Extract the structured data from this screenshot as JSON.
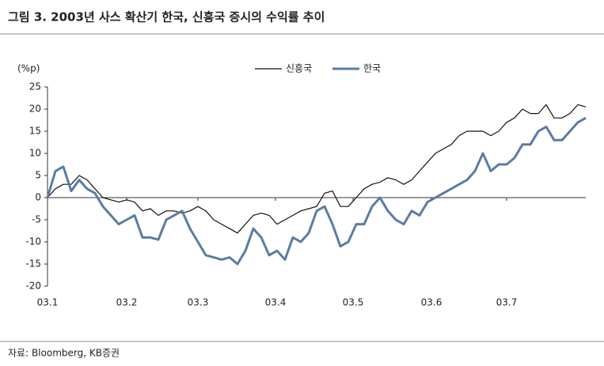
{
  "chart_data": {
    "type": "line",
    "title": "그림 3. 2003년 사스 확산기 한국, 신흥국 증시의 수익률 추이",
    "y_label": "(%p)",
    "source": "자료: Bloomberg, KB증권",
    "x": [
      0,
      1,
      2,
      3,
      4,
      5,
      6,
      7,
      8,
      9,
      10,
      11,
      12,
      13,
      14,
      15,
      16,
      17,
      18,
      19,
      20,
      21,
      22,
      23,
      24,
      25,
      26,
      27,
      28,
      29,
      30,
      31,
      32,
      33,
      34,
      35,
      36,
      37,
      38,
      39,
      40,
      41,
      42,
      43,
      44,
      45,
      46,
      47,
      48,
      49,
      50,
      51,
      52,
      53,
      54,
      55,
      56,
      57,
      58,
      59,
      60,
      61,
      62,
      63,
      64,
      65,
      66,
      67,
      68
    ],
    "xlim": [
      0,
      68
    ],
    "xticks": [
      {
        "value": 0,
        "label": "03.1"
      },
      {
        "value": 10,
        "label": "03.2"
      },
      {
        "value": 19,
        "label": "03.3"
      },
      {
        "value": 28.8,
        "label": "03.4"
      },
      {
        "value": 38.6,
        "label": "03.5"
      },
      {
        "value": 48.5,
        "label": "03.6"
      },
      {
        "value": 58,
        "label": "03.7"
      }
    ],
    "ylim": [
      -20,
      25
    ],
    "yticks": [
      -20,
      -15,
      -10,
      -5,
      0,
      5,
      10,
      15,
      20,
      25
    ],
    "series": [
      {
        "name": "신흥국",
        "color": "#111111",
        "width": 1.2,
        "values": [
          0,
          2,
          3,
          3,
          5,
          4,
          2,
          0,
          -0.5,
          -1,
          -0.5,
          -1,
          -3,
          -2.5,
          -4,
          -3,
          -3,
          -3.5,
          -3,
          -2,
          -3,
          -5,
          -6,
          -7,
          -8,
          -6,
          -4,
          -3.5,
          -4,
          -6,
          -5,
          -4,
          -3,
          -2.5,
          -2,
          1,
          1.5,
          -2,
          -2,
          0,
          2,
          3,
          3.5,
          4.5,
          4,
          3,
          4,
          6,
          8,
          10,
          11,
          12,
          14,
          15,
          15,
          15,
          14,
          15,
          17,
          18,
          20,
          19,
          19,
          21,
          18,
          18,
          19,
          21,
          20.5
        ]
      },
      {
        "name": "한국",
        "color": "#5b7ba3",
        "width": 3,
        "values": [
          0,
          6,
          7,
          1.5,
          4,
          2,
          1,
          -2,
          -4,
          -6,
          -5,
          -4,
          -9,
          -9,
          -9.5,
          -5,
          -4,
          -3,
          -7,
          -10,
          -13,
          -13.5,
          -14,
          -13.5,
          -15,
          -12,
          -7,
          -9,
          -13,
          -12,
          -14,
          -9,
          -10,
          -8,
          -3,
          -2,
          -6,
          -11,
          -10,
          -6,
          -6,
          -2,
          0,
          -3,
          -5,
          -6,
          -3,
          -4,
          -1,
          0,
          1,
          2,
          3,
          4,
          6,
          10,
          6,
          7.5,
          7.5,
          9,
          12,
          12,
          15,
          16,
          13,
          13,
          15,
          17,
          18
        ]
      }
    ]
  }
}
